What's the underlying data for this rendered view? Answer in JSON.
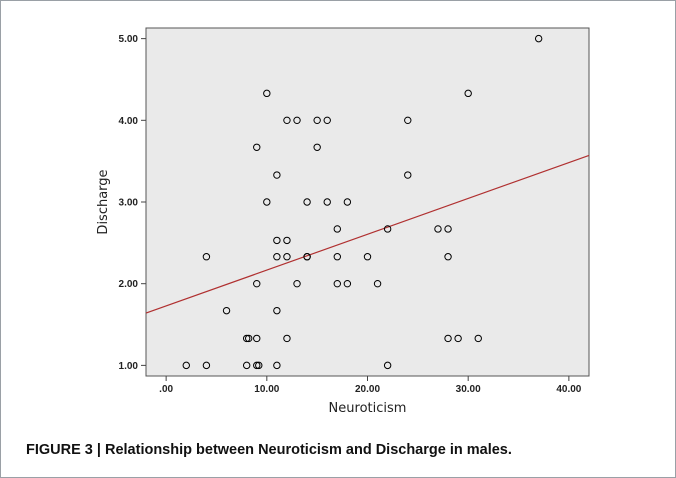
{
  "caption": "FIGURE 3 | Relationship between Neuroticism and Discharge in males.",
  "chart_data": {
    "type": "scatter",
    "title": "",
    "xlabel": "Neuroticism",
    "ylabel": "Discharge",
    "xlim": [
      -2,
      42
    ],
    "ylim": [
      0.87,
      5.13
    ],
    "xticks": [
      0,
      10,
      20,
      30,
      40
    ],
    "xtick_labels": [
      ".00",
      "10.00",
      "20.00",
      "30.00",
      "40.00"
    ],
    "yticks": [
      1,
      2,
      3,
      4,
      5
    ],
    "ytick_labels": [
      "1.00",
      "2.00",
      "3.00",
      "4.00",
      "5.00"
    ],
    "grid": false,
    "colors": {
      "plot_bg": "#eaeaea",
      "points": "#000000",
      "fit_line": "#b03030"
    },
    "points": [
      {
        "x": 37,
        "y": 5.0
      },
      {
        "x": 10,
        "y": 4.33
      },
      {
        "x": 30,
        "y": 4.33
      },
      {
        "x": 12,
        "y": 4.0
      },
      {
        "x": 13,
        "y": 4.0
      },
      {
        "x": 15,
        "y": 4.0
      },
      {
        "x": 16,
        "y": 4.0
      },
      {
        "x": 24,
        "y": 4.0
      },
      {
        "x": 9,
        "y": 3.67
      },
      {
        "x": 15,
        "y": 3.67
      },
      {
        "x": 11,
        "y": 3.33
      },
      {
        "x": 24,
        "y": 3.33
      },
      {
        "x": 10,
        "y": 3.0
      },
      {
        "x": 14,
        "y": 3.0
      },
      {
        "x": 16,
        "y": 3.0
      },
      {
        "x": 18,
        "y": 3.0
      },
      {
        "x": 17,
        "y": 2.67
      },
      {
        "x": 22,
        "y": 2.67
      },
      {
        "x": 27,
        "y": 2.67
      },
      {
        "x": 28,
        "y": 2.67
      },
      {
        "x": 11,
        "y": 2.53
      },
      {
        "x": 12,
        "y": 2.53
      },
      {
        "x": 4,
        "y": 2.33
      },
      {
        "x": 11,
        "y": 2.33
      },
      {
        "x": 12,
        "y": 2.33
      },
      {
        "x": 14,
        "y": 2.33
      },
      {
        "x": 14,
        "y": 2.33
      },
      {
        "x": 17,
        "y": 2.33
      },
      {
        "x": 20,
        "y": 2.33
      },
      {
        "x": 28,
        "y": 2.33
      },
      {
        "x": 9,
        "y": 2.0
      },
      {
        "x": 13,
        "y": 2.0
      },
      {
        "x": 17,
        "y": 2.0
      },
      {
        "x": 18,
        "y": 2.0
      },
      {
        "x": 21,
        "y": 2.0
      },
      {
        "x": 6,
        "y": 1.67
      },
      {
        "x": 11,
        "y": 1.67
      },
      {
        "x": 8,
        "y": 1.33
      },
      {
        "x": 8.2,
        "y": 1.33
      },
      {
        "x": 9,
        "y": 1.33
      },
      {
        "x": 12,
        "y": 1.33
      },
      {
        "x": 28,
        "y": 1.33
      },
      {
        "x": 29,
        "y": 1.33
      },
      {
        "x": 31,
        "y": 1.33
      },
      {
        "x": 2,
        "y": 1.0
      },
      {
        "x": 4,
        "y": 1.0
      },
      {
        "x": 8,
        "y": 1.0
      },
      {
        "x": 9,
        "y": 1.0
      },
      {
        "x": 9.2,
        "y": 1.0
      },
      {
        "x": 11,
        "y": 1.0
      },
      {
        "x": 22,
        "y": 1.0
      }
    ],
    "fit_line": {
      "x": [
        -2,
        42
      ],
      "y": [
        1.64,
        3.57
      ]
    }
  }
}
